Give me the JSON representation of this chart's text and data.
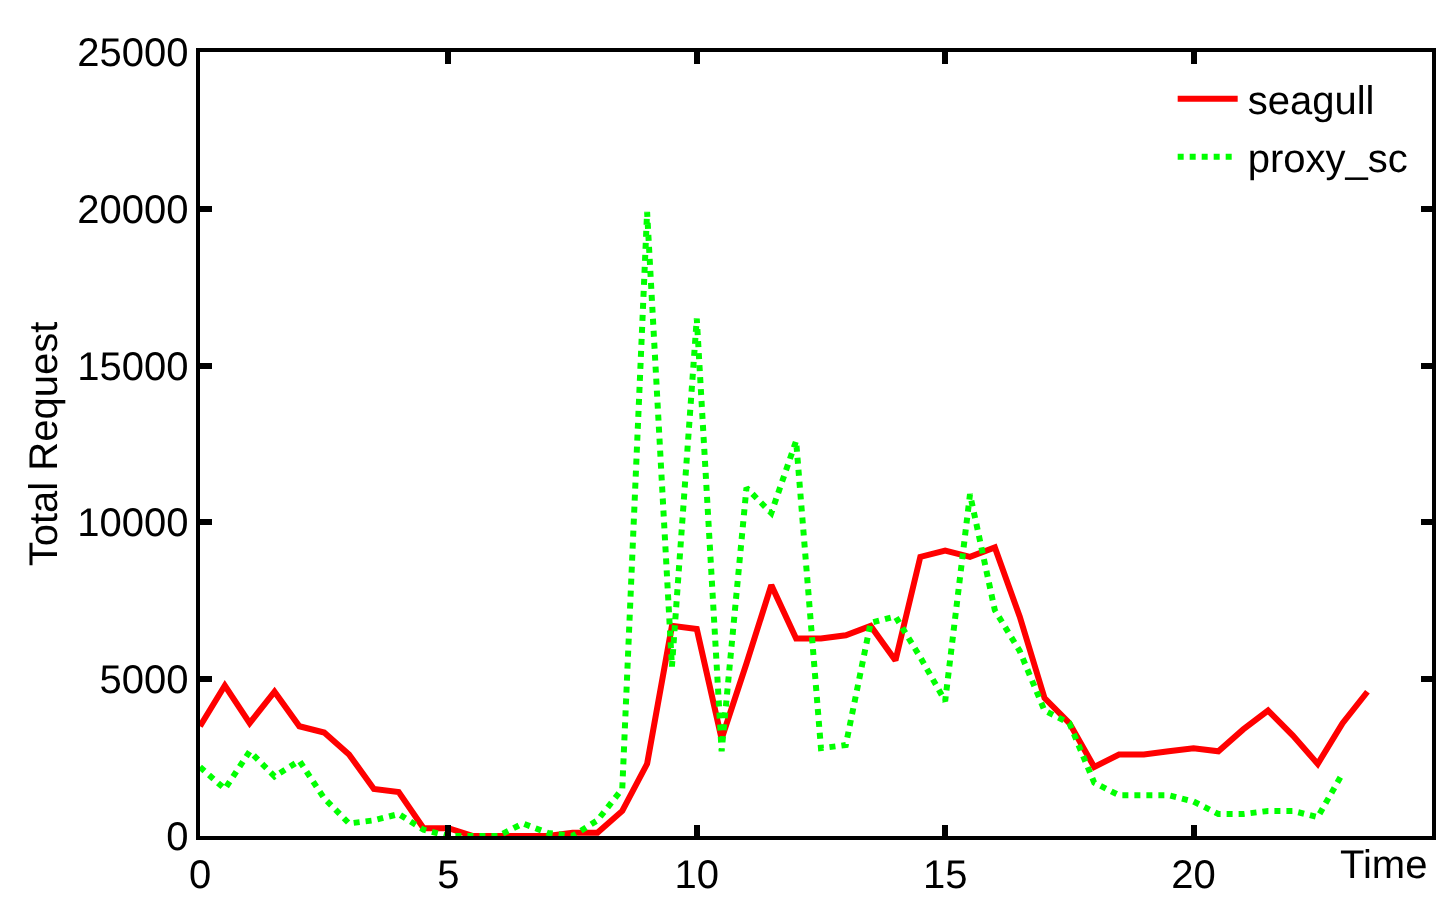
{
  "chart_data": {
    "type": "line",
    "xlabel": "Time",
    "ylabel": "Total Request",
    "xlim": [
      0,
      24.8
    ],
    "xticks": [
      0,
      5,
      10,
      15,
      20
    ],
    "ylim": [
      0,
      25000
    ],
    "yticks": [
      0,
      5000,
      10000,
      15000,
      20000,
      25000
    ],
    "legend": "top right",
    "marker": "none",
    "series": [
      {
        "name": "seagull",
        "color": "#ff0000",
        "line_style": "solid",
        "x": [
          0,
          0.5,
          1,
          1.5,
          2,
          2.5,
          3,
          3.5,
          4,
          4.5,
          5,
          5.5,
          6,
          6.5,
          7,
          7.5,
          8,
          8.5,
          9,
          9.5,
          10,
          10.5,
          11,
          11.5,
          12,
          12.5,
          13,
          13.5,
          14,
          14.5,
          15,
          15.5,
          16,
          16.5,
          17,
          17.5,
          18,
          18.5,
          19,
          19.5,
          20,
          20.5,
          21,
          21.5,
          22,
          22.5,
          23,
          23.5
        ],
        "values": [
          3500,
          4800,
          3600,
          4600,
          3500,
          3300,
          2600,
          1500,
          1400,
          250,
          250,
          0,
          0,
          0,
          0,
          100,
          100,
          800,
          2300,
          6700,
          6600,
          3100,
          5500,
          8000,
          6300,
          6300,
          6400,
          6700,
          5600,
          8900,
          9100,
          8900,
          9200,
          7000,
          4400,
          3600,
          2200,
          2600,
          2600,
          2700,
          2800,
          2700,
          3400,
          4000,
          3200,
          2300,
          3600,
          4600
        ]
      },
      {
        "name": "proxy_sc",
        "color": "#00ff00",
        "line_style": "dotted",
        "x": [
          0,
          0.5,
          1,
          1.5,
          2,
          2.5,
          3,
          3.5,
          4,
          4.5,
          5,
          5.5,
          6,
          6.5,
          7,
          7.5,
          8,
          8.5,
          9,
          9.5,
          10,
          10.5,
          11,
          11.5,
          12,
          12.5,
          13,
          13.5,
          14,
          14.5,
          15,
          15.5,
          16,
          16.5,
          17,
          17.5,
          18,
          18.5,
          19,
          19.5,
          20,
          20.5,
          21,
          21.5,
          22,
          22.5,
          23
        ],
        "values": [
          2200,
          1500,
          2700,
          1900,
          2400,
          1200,
          400,
          500,
          700,
          200,
          0,
          0,
          0,
          400,
          100,
          0,
          500,
          1500,
          19900,
          5400,
          16500,
          2700,
          11100,
          10300,
          12600,
          2800,
          2900,
          6800,
          7000,
          5700,
          4300,
          10900,
          7200,
          5900,
          4000,
          3600,
          1700,
          1300,
          1300,
          1300,
          1100,
          700,
          700,
          800,
          800,
          600,
          2000
        ]
      }
    ]
  }
}
